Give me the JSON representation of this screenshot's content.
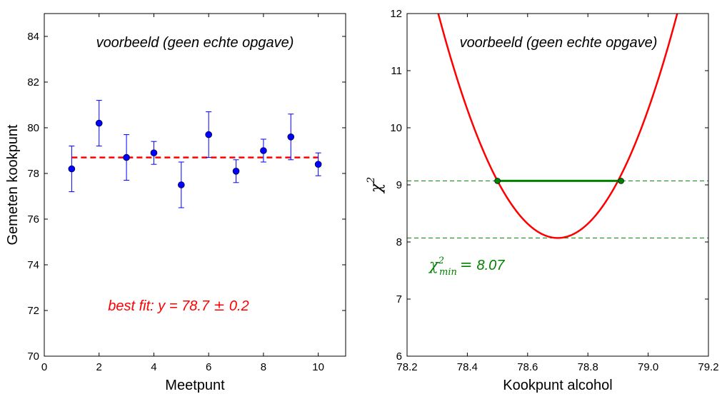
{
  "chart_data": [
    {
      "type": "scatter",
      "title": "",
      "xlabel": "Meetpunt",
      "ylabel": "Gemeten kookpunt",
      "xlim": [
        0,
        11
      ],
      "ylim": [
        70,
        85
      ],
      "xticks": [
        0,
        2,
        4,
        6,
        8,
        10
      ],
      "yticks": [
        70,
        72,
        74,
        76,
        78,
        80,
        82,
        84
      ],
      "grid": false,
      "series": [
        {
          "x": [
            1,
            2,
            3,
            4,
            5,
            6,
            7,
            8,
            9,
            10
          ],
          "y": [
            78.2,
            80.2,
            78.7,
            78.9,
            77.5,
            79.7,
            78.1,
            79.0,
            79.6,
            78.4
          ],
          "yerr": [
            1.0,
            1.0,
            1.0,
            0.5,
            1.0,
            1.0,
            0.5,
            0.5,
            1.0,
            0.5
          ],
          "color": "#0000ff"
        }
      ],
      "fit": {
        "y": 78.7,
        "x_range": [
          1,
          10
        ],
        "color": "#ff0000"
      },
      "annotations": {
        "example_note": "voorbeeld (geen echte opgave)",
        "fit_prefix": "best fit: y = 78.7",
        "fit_pm": "±",
        "fit_suffix": "0.2"
      }
    },
    {
      "type": "line",
      "title": "",
      "xlabel": "Kookpunt alcohol",
      "ylabel_base": "χ",
      "ylabel_sup": "2",
      "xlim": [
        78.2,
        79.2
      ],
      "ylim": [
        6,
        12
      ],
      "xticks": [
        "78.2",
        "78.4",
        "78.6",
        "78.8",
        "79.0",
        "79.2"
      ],
      "yticks": [
        6,
        7,
        8,
        9,
        10,
        11,
        12
      ],
      "grid": false,
      "curve": {
        "min_x": 78.7,
        "min_chi2": 8.07,
        "sigma": 0.2,
        "color": "#ff0000"
      },
      "hlines": [
        8.07,
        9.07
      ],
      "interval": {
        "x": [
          78.5,
          78.91
        ],
        "y": 9.07,
        "color": "#008000"
      },
      "annotations": {
        "example_note": "voorbeeld (geen echte opgave)",
        "chi_base": "χ",
        "chi_sup": "2",
        "chi_sub": "min",
        "chi_eq": "=",
        "chi_value": "8.07"
      }
    }
  ]
}
